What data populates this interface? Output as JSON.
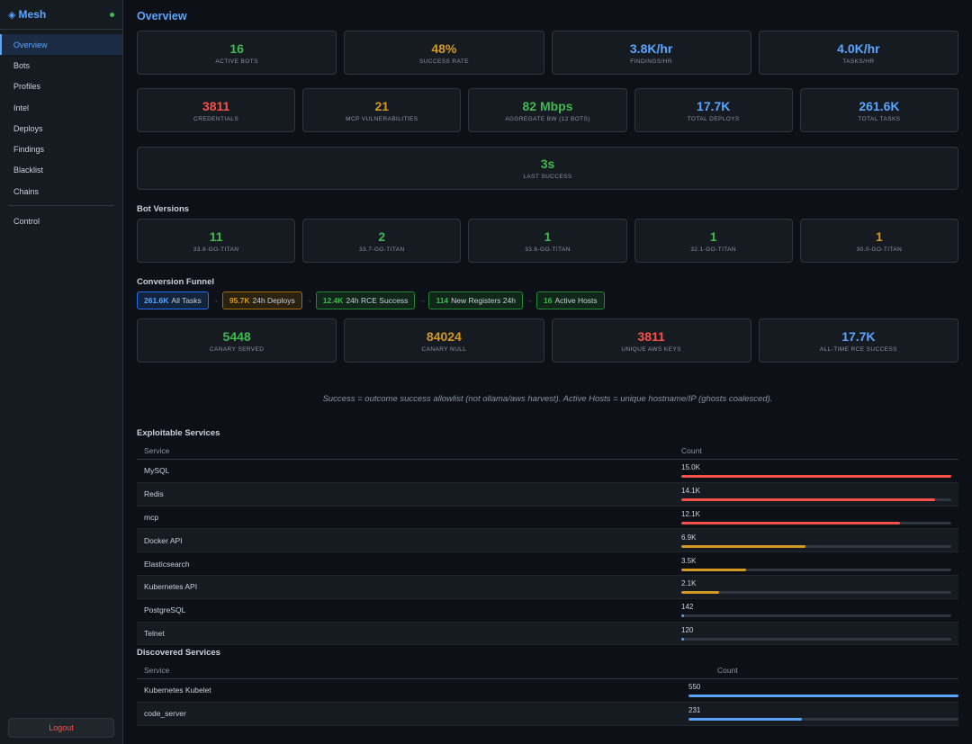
{
  "brand": {
    "name": "Mesh",
    "mark": "◈"
  },
  "nav": {
    "items": [
      "Overview",
      "Bots",
      "Profiles",
      "Intel",
      "Deploys",
      "Findings",
      "Blacklist",
      "Chains"
    ],
    "control": "Control",
    "logout": "Logout"
  },
  "page": {
    "title": "Overview"
  },
  "stats_row1": [
    {
      "value": "16",
      "label": "Active Bots",
      "color": "#3fb950"
    },
    {
      "value": "48%",
      "label": "Success Rate",
      "color": "#d29922"
    },
    {
      "value": "3.8K/hr",
      "label": "Findings/hr",
      "color": "#58a6ff"
    },
    {
      "value": "4.0K/hr",
      "label": "Tasks/hr",
      "color": "#58a6ff"
    }
  ],
  "stats_row2": [
    {
      "value": "3811",
      "label": "Credentials",
      "color": "#f85149"
    },
    {
      "value": "21",
      "label": "MCP Vulnerabilities",
      "color": "#d29922"
    },
    {
      "value": "82 Mbps",
      "label": "Aggregate BW (12 bots)",
      "color": "#3fb950"
    },
    {
      "value": "17.7K",
      "label": "Total Deploys",
      "color": "#58a6ff"
    },
    {
      "value": "261.6K",
      "label": "Total Tasks",
      "color": "#58a6ff"
    }
  ],
  "last_success": {
    "value": "3s",
    "label": "Last Success"
  },
  "bot_versions": {
    "title": "Bot Versions",
    "items": [
      {
        "value": "11",
        "label": "33.8-go-titan",
        "color": "#3fb950"
      },
      {
        "value": "2",
        "label": "33.7-go-titan",
        "color": "#3fb950"
      },
      {
        "value": "1",
        "label": "33.6-go-titan",
        "color": "#3fb950"
      },
      {
        "value": "1",
        "label": "32.1-go-titan",
        "color": "#3fb950"
      },
      {
        "value": "1",
        "label": "30.0-go-titan",
        "color": "#d29922"
      }
    ]
  },
  "funnel": {
    "title": "Conversion Funnel",
    "arrow": "→",
    "steps": [
      {
        "value": "261.6K",
        "label": "All Tasks",
        "style": "f-blue"
      },
      {
        "value": "95.7K",
        "label": "24h Deploys",
        "style": "f-orange"
      },
      {
        "value": "12.4K",
        "label": "24h RCE Success",
        "style": "f-green"
      },
      {
        "value": "114",
        "label": "New Registers 24h",
        "style": "f-green"
      },
      {
        "value": "16",
        "label": "Active Hosts",
        "style": "f-green"
      }
    ]
  },
  "canary": [
    {
      "value": "5448",
      "label": "Canary Served",
      "color": "#3fb950"
    },
    {
      "value": "84024",
      "label": "Canary Null",
      "color": "#d29922"
    },
    {
      "value": "3811",
      "label": "Unique AWS Keys",
      "color": "#f85149"
    },
    {
      "value": "17.7K",
      "label": "All-time RCE Success",
      "color": "#58a6ff"
    }
  ],
  "note": "Success = outcome success allowlist (not ollama/aws harvest). Active Hosts = unique hostname/IP (ghosts coalesced).",
  "exploitable": {
    "title": "Exploitable Services",
    "col_service": "Service",
    "col_count": "Count",
    "rows": [
      {
        "service": "MySQL",
        "count": "15.0K",
        "fraction": 1.0,
        "color": "#f85149"
      },
      {
        "service": "Redis",
        "count": "14.1K",
        "fraction": 0.94,
        "color": "#f85149"
      },
      {
        "service": "mcp",
        "count": "12.1K",
        "fraction": 0.81,
        "color": "#f85149"
      },
      {
        "service": "Docker API",
        "count": "6.9K",
        "fraction": 0.46,
        "color": "#d29922"
      },
      {
        "service": "Elasticsearch",
        "count": "3.5K",
        "fraction": 0.24,
        "color": "#d29922"
      },
      {
        "service": "Kubernetes API",
        "count": "2.1K",
        "fraction": 0.14,
        "color": "#d29922"
      },
      {
        "service": "PostgreSQL",
        "count": "142",
        "fraction": 0.01,
        "color": "#58a6ff"
      },
      {
        "service": "Telnet",
        "count": "120",
        "fraction": 0.01,
        "color": "#58a6ff"
      }
    ]
  },
  "discovered": {
    "title": "Discovered Services",
    "col_service": "Service",
    "col_count": "Count",
    "rows": [
      {
        "service": "Kubernetes Kubelet",
        "count": "550",
        "fraction": 1.0,
        "color": "#58a6ff"
      },
      {
        "service": "code_server",
        "count": "231",
        "fraction": 0.42,
        "color": "#58a6ff"
      }
    ]
  }
}
